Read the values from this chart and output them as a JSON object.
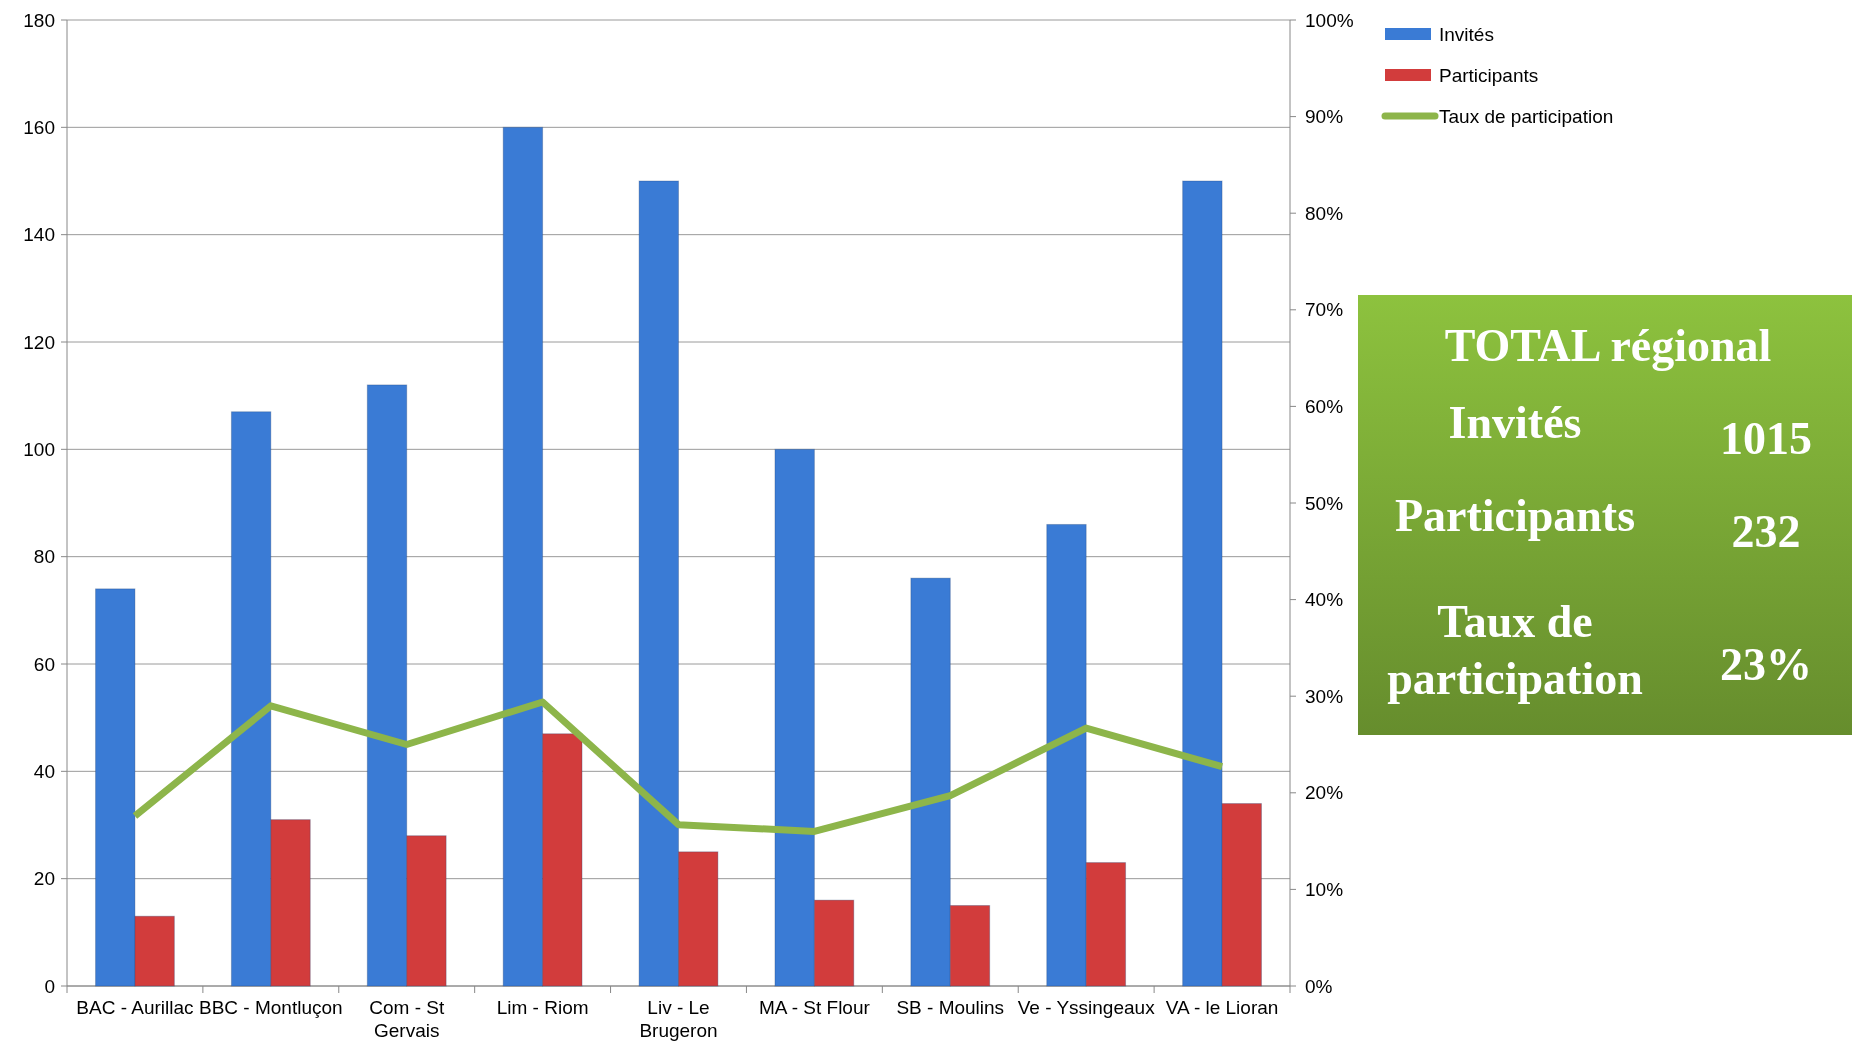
{
  "chart_data": [
    {
      "type": "bar",
      "categories": [
        "BAC - Aurillac",
        "BBC - Montluçon",
        "Com - St Gervais",
        "Lim - Riom",
        "Liv - Le Brugeron",
        "MA - St Flour",
        "SB - Moulins",
        "Ve - Yssingeaux",
        "VA - le Lioran"
      ],
      "series": [
        {
          "name": "Invités",
          "color": "#3a7bd5",
          "values": [
            74,
            107,
            112,
            160,
            150,
            100,
            76,
            86,
            150
          ]
        },
        {
          "name": "Participants",
          "color": "#d23c3c",
          "values": [
            13,
            31,
            28,
            47,
            25,
            16,
            15,
            23,
            34
          ]
        },
        {
          "name": "Taux de participation",
          "type": "line",
          "axis": "y2",
          "color": "#8db54a",
          "values": [
            17.6,
            29,
            25,
            29.4,
            16.7,
            16,
            19.7,
            26.7,
            22.7
          ]
        }
      ],
      "ylim": [
        0,
        180
      ],
      "yticks": [
        0,
        20,
        40,
        60,
        80,
        100,
        120,
        140,
        160,
        180
      ],
      "y2lim": [
        0,
        100
      ],
      "y2ticks": [
        {
          "value": 0,
          "label": "0%"
        },
        {
          "value": 10,
          "label": "10%"
        },
        {
          "value": 20,
          "label": "20%"
        },
        {
          "value": 30,
          "label": "30%"
        },
        {
          "value": 40,
          "label": "40%"
        },
        {
          "value": 50,
          "label": "50%"
        },
        {
          "value": 60,
          "label": "60%"
        },
        {
          "value": 70,
          "label": "70%"
        },
        {
          "value": 80,
          "label": "80%"
        },
        {
          "value": 90,
          "label": "90%"
        },
        {
          "value": 100,
          "label": "100%"
        }
      ],
      "grid": "y",
      "legend": "top right",
      "marker": "none"
    },
    {
      "type": "other",
      "title": "TOTAL régional",
      "categories": [
        "Invités",
        "Participants",
        "Taux de participation"
      ],
      "value_labels": [
        "1015",
        "232",
        "23%"
      ],
      "color": "#7aa836"
    }
  ]
}
